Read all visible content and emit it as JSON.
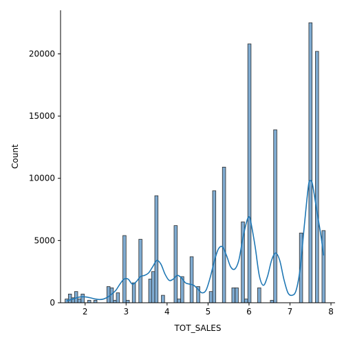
{
  "chart_data": {
    "type": "bar",
    "title": "",
    "xlabel": "TOT_SALES",
    "ylabel": "Count",
    "xlim": [
      1.4,
      8.1
    ],
    "ylim": [
      0,
      23500
    ],
    "x_ticks": [
      2,
      3,
      4,
      5,
      6,
      7,
      8
    ],
    "y_ticks": [
      0,
      5000,
      10000,
      15000,
      20000
    ],
    "grid": false,
    "legend": "none",
    "bar_color": "#1f77b4",
    "bar_fill_color": "#7fabd1",
    "bar_edge_color": "#2a2a2a",
    "kde_color": "#1f77b4",
    "bin_width": 0.0787,
    "bins": [
      {
        "x": 1.55,
        "count": 300
      },
      {
        "x": 1.63,
        "count": 700
      },
      {
        "x": 1.71,
        "count": 400
      },
      {
        "x": 1.78,
        "count": 900
      },
      {
        "x": 1.86,
        "count": 300
      },
      {
        "x": 1.94,
        "count": 700
      },
      {
        "x": 2.1,
        "count": 200
      },
      {
        "x": 2.25,
        "count": 200
      },
      {
        "x": 2.57,
        "count": 1300
      },
      {
        "x": 2.65,
        "count": 1200
      },
      {
        "x": 2.73,
        "count": 200
      },
      {
        "x": 2.8,
        "count": 800
      },
      {
        "x": 2.96,
        "count": 5400
      },
      {
        "x": 3.04,
        "count": 200
      },
      {
        "x": 3.19,
        "count": 1600
      },
      {
        "x": 3.35,
        "count": 5100
      },
      {
        "x": 3.59,
        "count": 1900
      },
      {
        "x": 3.66,
        "count": 2500
      },
      {
        "x": 3.74,
        "count": 8600
      },
      {
        "x": 3.9,
        "count": 600
      },
      {
        "x": 4.21,
        "count": 6200
      },
      {
        "x": 4.29,
        "count": 300
      },
      {
        "x": 4.37,
        "count": 2100
      },
      {
        "x": 4.6,
        "count": 3700
      },
      {
        "x": 4.76,
        "count": 1300
      },
      {
        "x": 5.07,
        "count": 900
      },
      {
        "x": 5.15,
        "count": 9000
      },
      {
        "x": 5.39,
        "count": 10900
      },
      {
        "x": 5.62,
        "count": 1200
      },
      {
        "x": 5.7,
        "count": 1200
      },
      {
        "x": 5.85,
        "count": 6500
      },
      {
        "x": 5.93,
        "count": 300
      },
      {
        "x": 6.01,
        "count": 20800
      },
      {
        "x": 6.25,
        "count": 1200
      },
      {
        "x": 6.56,
        "count": 200
      },
      {
        "x": 6.64,
        "count": 13900
      },
      {
        "x": 7.27,
        "count": 5600
      },
      {
        "x": 7.5,
        "count": 22500
      },
      {
        "x": 7.66,
        "count": 20200
      },
      {
        "x": 7.82,
        "count": 5800
      }
    ],
    "kde": {
      "x": [
        1.55,
        1.65,
        1.75,
        1.85,
        1.95,
        2.05,
        2.15,
        2.25,
        2.35,
        2.45,
        2.55,
        2.65,
        2.75,
        2.85,
        2.95,
        3.05,
        3.15,
        3.25,
        3.35,
        3.45,
        3.55,
        3.65,
        3.75,
        3.85,
        3.95,
        4.05,
        4.15,
        4.25,
        4.35,
        4.45,
        4.55,
        4.65,
        4.75,
        4.85,
        4.95,
        5.05,
        5.15,
        5.25,
        5.35,
        5.45,
        5.55,
        5.65,
        5.75,
        5.85,
        5.95,
        6.01,
        6.05,
        6.15,
        6.25,
        6.35,
        6.45,
        6.55,
        6.65,
        6.75,
        6.85,
        6.95,
        7.05,
        7.15,
        7.25,
        7.35,
        7.45,
        7.5,
        7.55,
        7.65,
        7.75,
        7.82
      ],
      "y": [
        150,
        250,
        350,
        450,
        480,
        450,
        380,
        300,
        260,
        300,
        450,
        700,
        1000,
        1500,
        1900,
        1900,
        1500,
        1700,
        2100,
        2200,
        2400,
        2900,
        3400,
        3100,
        2300,
        1800,
        1900,
        2200,
        2000,
        1600,
        1500,
        1400,
        1100,
        800,
        1000,
        2000,
        3300,
        4300,
        4500,
        3800,
        2900,
        2700,
        3400,
        5200,
        6600,
        6900,
        6400,
        4500,
        2200,
        1400,
        2100,
        3400,
        4000,
        3400,
        1900,
        800,
        600,
        1000,
        2800,
        6200,
        9400,
        9800,
        9500,
        7500,
        5500,
        3800
      ]
    }
  }
}
